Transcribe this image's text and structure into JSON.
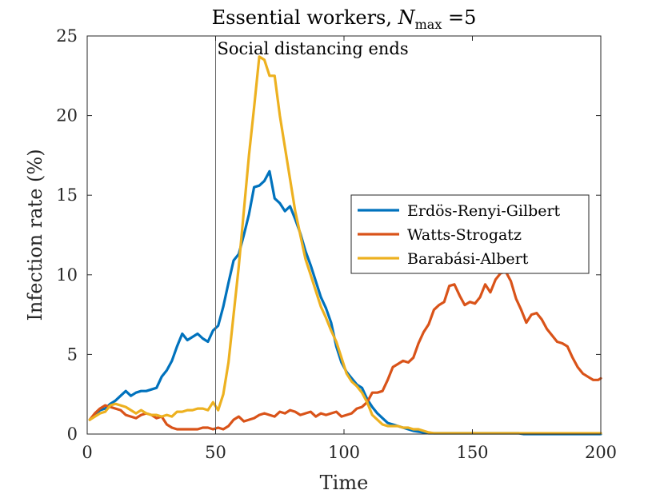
{
  "chart_data": {
    "type": "line",
    "title": {
      "prefix": "Essential workers, ",
      "var_main": "N",
      "var_sub": "max",
      "suffix": " =5"
    },
    "xlabel": "Time",
    "ylabel": "Infection rate (%)",
    "xlim": [
      0,
      200
    ],
    "ylim": [
      0,
      25
    ],
    "xticks": [
      "0",
      "50",
      "100",
      "150",
      "200"
    ],
    "yticks": [
      "0",
      "5",
      "10",
      "15",
      "20",
      "25"
    ],
    "grid": false,
    "legend_position": "right",
    "annotation": {
      "text": "Social distancing ends",
      "x": 50
    },
    "series": [
      {
        "name": "Erdös-Renyi-Gilbert",
        "color": "#0072BD",
        "x": [
          1,
          3,
          5,
          7,
          9,
          11,
          13,
          15,
          17,
          19,
          21,
          23,
          25,
          27,
          29,
          31,
          33,
          35,
          37,
          39,
          41,
          43,
          45,
          47,
          49,
          51,
          53,
          55,
          57,
          59,
          61,
          63,
          65,
          67,
          69,
          71,
          73,
          75,
          77,
          79,
          81,
          83,
          85,
          87,
          89,
          91,
          93,
          95,
          97,
          99,
          101,
          103,
          105,
          107,
          109,
          111,
          113,
          115,
          117,
          119,
          121,
          123,
          125,
          127,
          129,
          131,
          133,
          135,
          140,
          150,
          160,
          168,
          170,
          180,
          190,
          200
        ],
        "values": [
          0.9,
          1.2,
          1.5,
          1.6,
          1.9,
          2.1,
          2.4,
          2.7,
          2.4,
          2.6,
          2.7,
          2.7,
          2.8,
          2.9,
          3.6,
          4.0,
          4.6,
          5.5,
          6.3,
          5.9,
          6.1,
          6.3,
          6.0,
          5.8,
          6.5,
          6.8,
          8.0,
          9.5,
          10.9,
          11.3,
          12.5,
          13.8,
          15.5,
          15.6,
          15.9,
          16.5,
          14.8,
          14.5,
          14.0,
          14.3,
          13.5,
          12.6,
          11.5,
          10.6,
          9.6,
          8.6,
          7.9,
          7.0,
          5.5,
          4.5,
          3.9,
          3.5,
          3.1,
          2.9,
          2.2,
          1.7,
          1.3,
          1.0,
          0.7,
          0.6,
          0.5,
          0.4,
          0.3,
          0.2,
          0.15,
          0.1,
          0.05,
          0.05,
          0.05,
          0.05,
          0.05,
          0.05,
          0.0,
          0.0,
          0.0,
          0.0
        ]
      },
      {
        "name": "Watts-Strogatz",
        "color": "#D95319",
        "x": [
          1,
          3,
          5,
          7,
          9,
          11,
          13,
          15,
          17,
          19,
          21,
          23,
          25,
          27,
          29,
          31,
          33,
          35,
          37,
          39,
          41,
          43,
          45,
          47,
          49,
          51,
          53,
          55,
          57,
          59,
          61,
          63,
          65,
          67,
          69,
          71,
          73,
          75,
          77,
          79,
          81,
          83,
          85,
          87,
          89,
          91,
          93,
          95,
          97,
          99,
          101,
          103,
          105,
          107,
          109,
          111,
          113,
          115,
          117,
          119,
          121,
          123,
          125,
          127,
          129,
          131,
          133,
          135,
          137,
          139,
          141,
          143,
          145,
          147,
          149,
          151,
          153,
          155,
          157,
          159,
          161,
          163,
          165,
          167,
          169,
          171,
          173,
          175,
          177,
          179,
          181,
          183,
          185,
          187,
          189,
          191,
          193,
          195,
          197,
          199,
          200
        ],
        "values": [
          0.9,
          1.3,
          1.6,
          1.8,
          1.7,
          1.6,
          1.5,
          1.2,
          1.1,
          1.0,
          1.2,
          1.3,
          1.2,
          1.0,
          1.1,
          0.6,
          0.4,
          0.3,
          0.3,
          0.3,
          0.3,
          0.3,
          0.4,
          0.4,
          0.3,
          0.4,
          0.3,
          0.5,
          0.9,
          1.1,
          0.8,
          0.9,
          1.0,
          1.2,
          1.3,
          1.2,
          1.1,
          1.4,
          1.3,
          1.5,
          1.4,
          1.2,
          1.3,
          1.4,
          1.1,
          1.3,
          1.2,
          1.3,
          1.4,
          1.1,
          1.2,
          1.3,
          1.6,
          1.7,
          2.0,
          2.6,
          2.6,
          2.7,
          3.4,
          4.2,
          4.4,
          4.6,
          4.5,
          4.8,
          5.7,
          6.4,
          6.9,
          7.8,
          8.1,
          8.3,
          9.3,
          9.4,
          8.7,
          8.1,
          8.3,
          8.2,
          8.6,
          9.4,
          8.9,
          9.7,
          10.1,
          10.2,
          9.6,
          8.5,
          7.8,
          7.0,
          7.5,
          7.6,
          7.2,
          6.6,
          6.2,
          5.8,
          5.7,
          5.5,
          4.8,
          4.2,
          3.8,
          3.6,
          3.4,
          3.4,
          3.5
        ]
      },
      {
        "name": "Barabási-Albert",
        "color": "#EDB120",
        "x": [
          1,
          3,
          5,
          7,
          9,
          11,
          13,
          15,
          17,
          19,
          21,
          23,
          25,
          27,
          29,
          31,
          33,
          35,
          37,
          39,
          41,
          43,
          45,
          47,
          49,
          51,
          53,
          55,
          57,
          59,
          61,
          63,
          65,
          67,
          69,
          71,
          73,
          75,
          77,
          79,
          81,
          83,
          85,
          87,
          89,
          91,
          93,
          95,
          97,
          99,
          101,
          103,
          105,
          107,
          109,
          111,
          113,
          115,
          117,
          119,
          121,
          123,
          125,
          127,
          129,
          131,
          133,
          135,
          140,
          150,
          160,
          170,
          180,
          190,
          200
        ],
        "values": [
          0.9,
          1.1,
          1.3,
          1.4,
          1.8,
          1.9,
          1.8,
          1.7,
          1.5,
          1.3,
          1.5,
          1.3,
          1.2,
          1.2,
          1.1,
          1.2,
          1.1,
          1.4,
          1.4,
          1.5,
          1.5,
          1.6,
          1.6,
          1.5,
          2.0,
          1.5,
          2.5,
          4.5,
          7.5,
          10.5,
          14.0,
          17.5,
          20.5,
          23.7,
          23.5,
          22.5,
          22.5,
          20.0,
          18.0,
          16.0,
          14.0,
          12.5,
          11.0,
          10.0,
          9.0,
          8.0,
          7.3,
          6.5,
          5.8,
          4.8,
          3.8,
          3.3,
          3.0,
          2.6,
          2.0,
          1.2,
          0.9,
          0.6,
          0.5,
          0.5,
          0.5,
          0.4,
          0.4,
          0.3,
          0.3,
          0.2,
          0.1,
          0.05,
          0.05,
          0.05,
          0.05,
          0.05,
          0.05,
          0.05,
          0.05
        ]
      }
    ]
  }
}
